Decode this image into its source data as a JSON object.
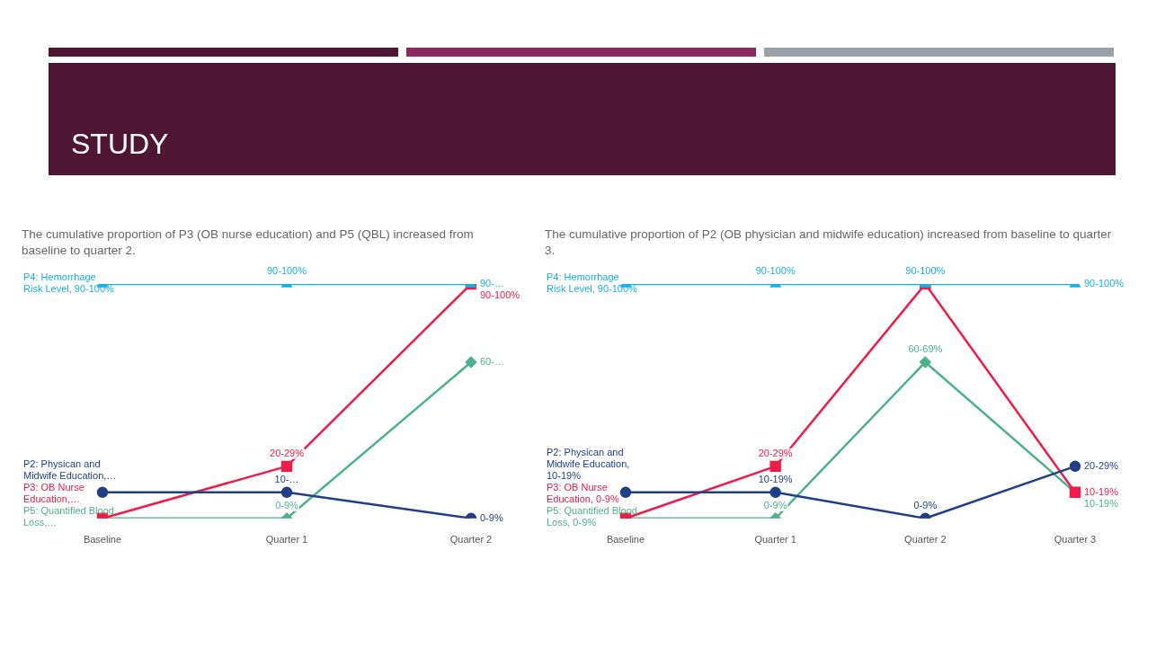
{
  "chart_data": [
    {
      "type": "line",
      "title": "The cumulative proportion of P3 (OB nurse education) and P5 (QBL) increased from baseline to quarter 2.",
      "annotations": [
        "STUDY"
      ],
      "grid": false,
      "legend": false,
      "tick_labels": "x",
      "categories": [
        "Baseline",
        "Quarter 1",
        "Quarter 2"
      ],
      "series": [
        {
          "name": "P4: Hemorrhage Risk Level, 90-100%",
          "color": "#16b0e6",
          "marker": "triangle",
          "values": [
            90,
            90,
            90
          ],
          "value_labels": [
            null,
            "90-100%",
            "90-…"
          ]
        },
        {
          "name": "P2: Physican and Midwife Education,…",
          "color": "#1f3f87",
          "marker": "circle",
          "values": [
            10,
            10,
            0
          ],
          "value_labels": [
            null,
            "10-…",
            "0-9%"
          ]
        },
        {
          "name": "P3: OB Nurse Education,…",
          "color": "#ee1c47",
          "marker": "square",
          "values": [
            0,
            20,
            90
          ],
          "value_labels": [
            null,
            "20-29%",
            "90-100%"
          ]
        },
        {
          "name": "P5: Quantified Blood Loss,…",
          "color": "#4fb08c",
          "marker": "diamond",
          "values": [
            0,
            0,
            60
          ],
          "value_labels": [
            null,
            "0-9%",
            "60-…"
          ]
        }
      ]
    },
    {
      "type": "line",
      "title": "The cumulative proportion of P2 (OB physician and midwife education) increased from baseline to quarter 3.",
      "grid": false,
      "legend": false,
      "tick_labels": "x",
      "categories": [
        "Baseline",
        "Quarter 1",
        "Quarter 2",
        "Quarter 3"
      ],
      "series": [
        {
          "name": "P4: Hemorrhage Risk Level, 90-100%",
          "color": "#16b0e6",
          "marker": "triangle",
          "values": [
            90,
            90,
            90,
            90
          ],
          "value_labels": [
            null,
            "90-100%",
            "90-100%",
            "90-100%"
          ]
        },
        {
          "name": "P2: Physican and Midwife Education, 10-19%",
          "color": "#1f3f87",
          "marker": "circle",
          "values": [
            10,
            10,
            0,
            20
          ],
          "value_labels": [
            null,
            "10-19%",
            "0-9%",
            "20-29%"
          ]
        },
        {
          "name": "P3: OB Nurse Education, 0-9%",
          "color": "#ee1c47",
          "marker": "square",
          "values": [
            0,
            20,
            90,
            10
          ],
          "value_labels": [
            null,
            "20-29%",
            null,
            "10-19%"
          ]
        },
        {
          "name": "P5: Quantified Blood Loss, 0-9%",
          "color": "#4fb08c",
          "marker": "diamond",
          "values": [
            0,
            0,
            60,
            10
          ],
          "value_labels": [
            null,
            "0-9%",
            "60-69%",
            "10-19%"
          ]
        }
      ]
    }
  ]
}
